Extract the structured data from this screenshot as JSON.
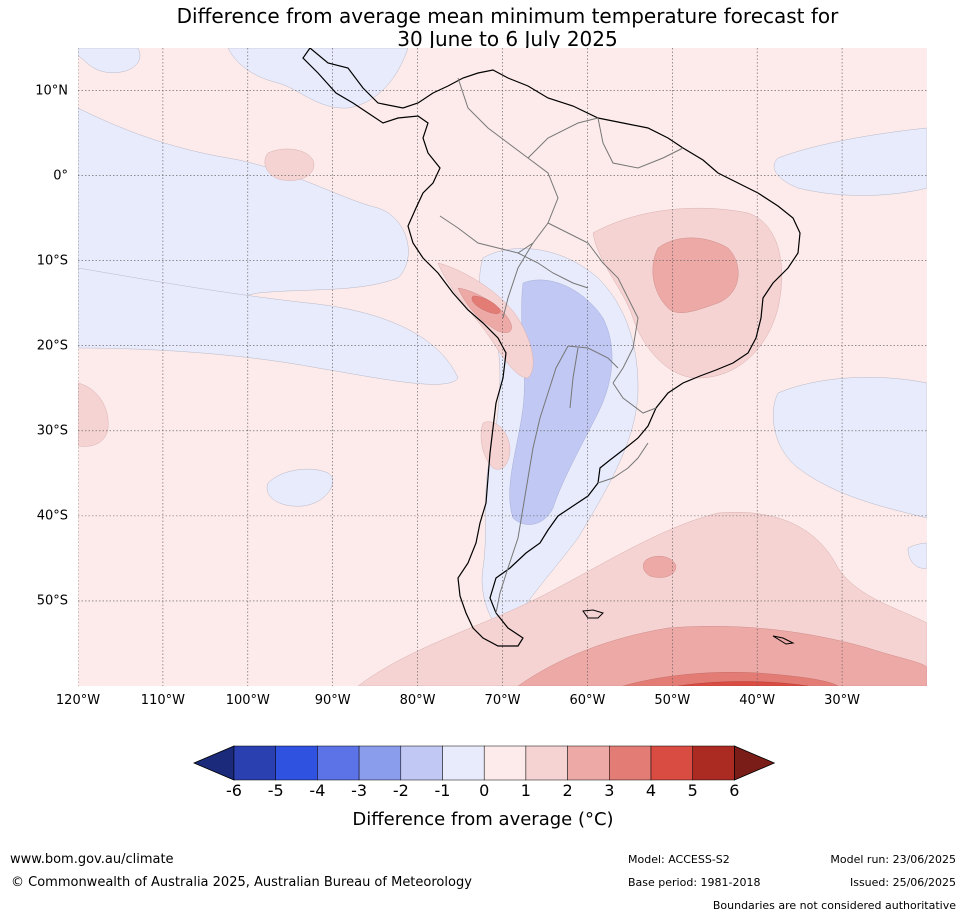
{
  "title_line1": "Difference from average mean minimum temperature forecast for",
  "title_line2": "30 June to 6 July 2025",
  "lat_labels": [
    "10°N",
    "0°",
    "10°S",
    "20°S",
    "30°S",
    "40°S",
    "50°S"
  ],
  "lon_labels": [
    "120°W",
    "110°W",
    "100°W",
    "90°W",
    "80°W",
    "70°W",
    "60°W",
    "50°W",
    "40°W",
    "30°W"
  ],
  "map_extent": {
    "lon_min": -120,
    "lon_max": -20,
    "lat_min": -60,
    "lat_max": 15
  },
  "colorbar": {
    "ticks": [
      "-6",
      "-5",
      "-4",
      "-3",
      "-2",
      "-1",
      "0",
      "1",
      "2",
      "3",
      "4",
      "5",
      "6"
    ],
    "colors": [
      "#1b2a7a",
      "#2a3fb0",
      "#2f52e0",
      "#5b73e6",
      "#8a9cec",
      "#c0c8f3",
      "#e8ebfb",
      "#fcebea",
      "#f6d3d3",
      "#eca9a6",
      "#e47c76",
      "#d94c42",
      "#ab2a22",
      "#7a1c18"
    ],
    "label": "Difference from average (°C)"
  },
  "footer": {
    "url": "www.bom.gov.au/climate",
    "copyright": "© Commonwealth of Australia 2025, Australian Bureau of Meteorology",
    "model": "Model: ACCESS-S2",
    "base_period": "Base period: 1981-2018",
    "model_run": "Model run: 23/06/2025",
    "issued": "Issued: 25/06/2025",
    "disclaimer": "Boundaries are not considered authoritative"
  }
}
